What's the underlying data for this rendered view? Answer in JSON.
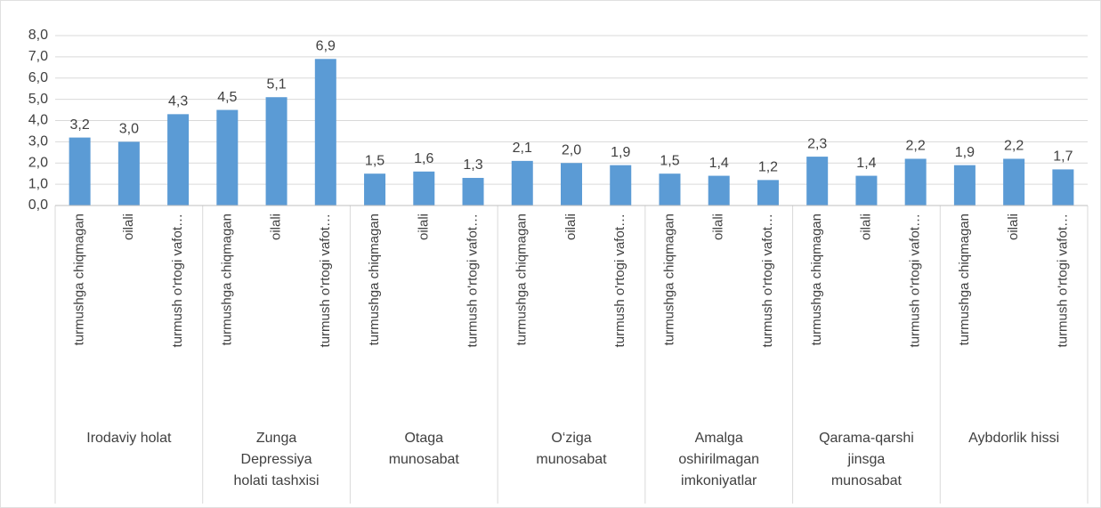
{
  "chart_data": {
    "type": "bar",
    "color": "#5b9bd5",
    "grid": true,
    "ylim": [
      0,
      8
    ],
    "yticks": [
      {
        "value": 0,
        "label": "0,0"
      },
      {
        "value": 1,
        "label": "1,0"
      },
      {
        "value": 2,
        "label": "2,0"
      },
      {
        "value": 3,
        "label": "3,0"
      },
      {
        "value": 4,
        "label": "4,0"
      },
      {
        "value": 5,
        "label": "5,0"
      },
      {
        "value": 6,
        "label": "6,0"
      },
      {
        "value": 7,
        "label": "7,0"
      },
      {
        "value": 8,
        "label": "8,0"
      }
    ],
    "groups": [
      {
        "name": "Irodaviy holat",
        "categories": [
          "turmushga chiqmagan",
          "oilali",
          "turmush o'rtogi vafot…"
        ],
        "values": [
          3.2,
          3.0,
          4.3
        ],
        "value_labels": [
          "3,2",
          "3,0",
          "4,3"
        ]
      },
      {
        "name": "Zunga Depressiya holati tashxisi",
        "categories": [
          "turmushga chiqmagan",
          "oilali",
          "turmush o'rtogi vafot…"
        ],
        "values": [
          4.5,
          5.1,
          6.9
        ],
        "value_labels": [
          "4,5",
          "5,1",
          "6,9"
        ]
      },
      {
        "name": "Otaga munosabat",
        "categories": [
          "turmushga chiqmagan",
          "oilali",
          "turmush o'rtogi vafot…"
        ],
        "values": [
          1.5,
          1.6,
          1.3
        ],
        "value_labels": [
          "1,5",
          "1,6",
          "1,3"
        ]
      },
      {
        "name": "O‘ziga munosabat",
        "categories": [
          "turmushga chiqmagan",
          "oilali",
          "turmush o'rtogi vafot…"
        ],
        "values": [
          2.1,
          2.0,
          1.9
        ],
        "value_labels": [
          "2,1",
          "2,0",
          "1,9"
        ]
      },
      {
        "name": "Amalga oshirilmagan imkoniyatlar",
        "categories": [
          "turmushga chiqmagan",
          "oilali",
          "turmush o'rtogi vafot…"
        ],
        "values": [
          1.5,
          1.4,
          1.2
        ],
        "value_labels": [
          "1,5",
          "1,4",
          "1,2"
        ]
      },
      {
        "name": "Qarama-qarshi jinsga munosabat",
        "categories": [
          "turmushga chiqmagan",
          "oilali",
          "turmush o'rtogi vafot…"
        ],
        "values": [
          2.3,
          1.4,
          2.2
        ],
        "value_labels": [
          "2,3",
          "1,4",
          "2,2"
        ]
      },
      {
        "name": "Aybdorlik hissi",
        "categories": [
          "turmushga chiqmagan",
          "oilali",
          "turmush o'rtogi vafot…"
        ],
        "values": [
          1.9,
          2.2,
          1.7
        ],
        "value_labels": [
          "1,9",
          "2,2",
          "1,7"
        ]
      }
    ]
  }
}
